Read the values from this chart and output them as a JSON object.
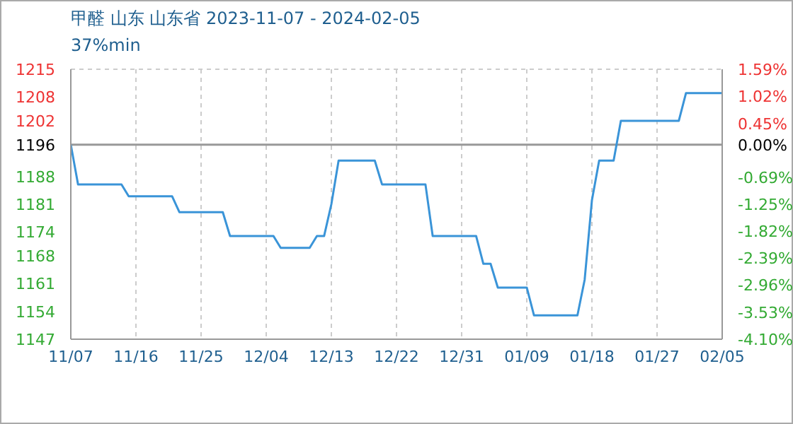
{
  "chart_data": {
    "type": "line",
    "title": "甲醛 山东 山东省 2023-11-07 - 2024-02-05",
    "subtitle": "37%min",
    "x": [
      "2023-11-07",
      "2023-11-08",
      "2023-11-14",
      "2023-11-15",
      "2023-11-21",
      "2023-11-22",
      "2023-11-28",
      "2023-11-29",
      "2023-12-05",
      "2023-12-06",
      "2023-12-10",
      "2023-12-11",
      "2023-12-12",
      "2023-12-13",
      "2023-12-14",
      "2023-12-19",
      "2023-12-20",
      "2023-12-26",
      "2023-12-27",
      "2024-01-02",
      "2024-01-03",
      "2024-01-04",
      "2024-01-05",
      "2024-01-09",
      "2024-01-10",
      "2024-01-16",
      "2024-01-17",
      "2024-01-18",
      "2024-01-19",
      "2024-01-21",
      "2024-01-22",
      "2024-01-30",
      "2024-01-31",
      "2024-02-05"
    ],
    "series": [
      {
        "color": "#3a94d8",
        "values": [
          1196,
          1186,
          1186,
          1183,
          1183,
          1179,
          1179,
          1173,
          1173,
          1170,
          1170,
          1173,
          1173,
          1181,
          1192,
          1192,
          1186,
          1186,
          1173,
          1173,
          1166,
          1166,
          1160,
          1160,
          1153,
          1153,
          1162,
          1182,
          1192,
          1192,
          1202,
          1202,
          1209,
          1209
        ]
      }
    ],
    "xlim": [
      "2023-11-07",
      "2024-02-05"
    ],
    "xticks": [
      {
        "value": "2023-11-07",
        "label": "11/07"
      },
      {
        "value": "2023-11-16",
        "label": "11/16"
      },
      {
        "value": "2023-11-25",
        "label": "11/25"
      },
      {
        "value": "2023-12-04",
        "label": "12/04"
      },
      {
        "value": "2023-12-13",
        "label": "12/13"
      },
      {
        "value": "2023-12-22",
        "label": "12/22"
      },
      {
        "value": "2023-12-31",
        "label": "12/31"
      },
      {
        "value": "2024-01-09",
        "label": "01/09"
      },
      {
        "value": "2024-01-18",
        "label": "01/18"
      },
      {
        "value": "2024-01-27",
        "label": "01/27"
      },
      {
        "value": "2024-02-05",
        "label": "02/05"
      }
    ],
    "ylim": [
      1147,
      1215
    ],
    "yticks": [
      1147,
      1154,
      1161,
      1168,
      1174,
      1181,
      1188,
      1196,
      1202,
      1208,
      1215
    ],
    "y2lim": [
      -4.1,
      1.59
    ],
    "y2ticks": [
      {
        "value": -4.1,
        "label": "-4.10%"
      },
      {
        "value": -3.53,
        "label": "-3.53%"
      },
      {
        "value": -2.96,
        "label": "-2.96%"
      },
      {
        "value": -2.39,
        "label": "-2.39%"
      },
      {
        "value": -1.82,
        "label": "-1.82%"
      },
      {
        "value": -1.25,
        "label": "-1.25%"
      },
      {
        "value": -0.69,
        "label": "-0.69%"
      },
      {
        "value": 0,
        "label": "0.00%"
      },
      {
        "value": 0.45,
        "label": "0.45%"
      },
      {
        "value": 1.02,
        "label": "1.02%"
      },
      {
        "value": 1.59,
        "label": "1.59%"
      }
    ],
    "ref_lines": [
      {
        "axis": "y",
        "value": 1196,
        "color": "#999999"
      }
    ],
    "grid": true,
    "marker": "none",
    "line_style": "solid"
  }
}
